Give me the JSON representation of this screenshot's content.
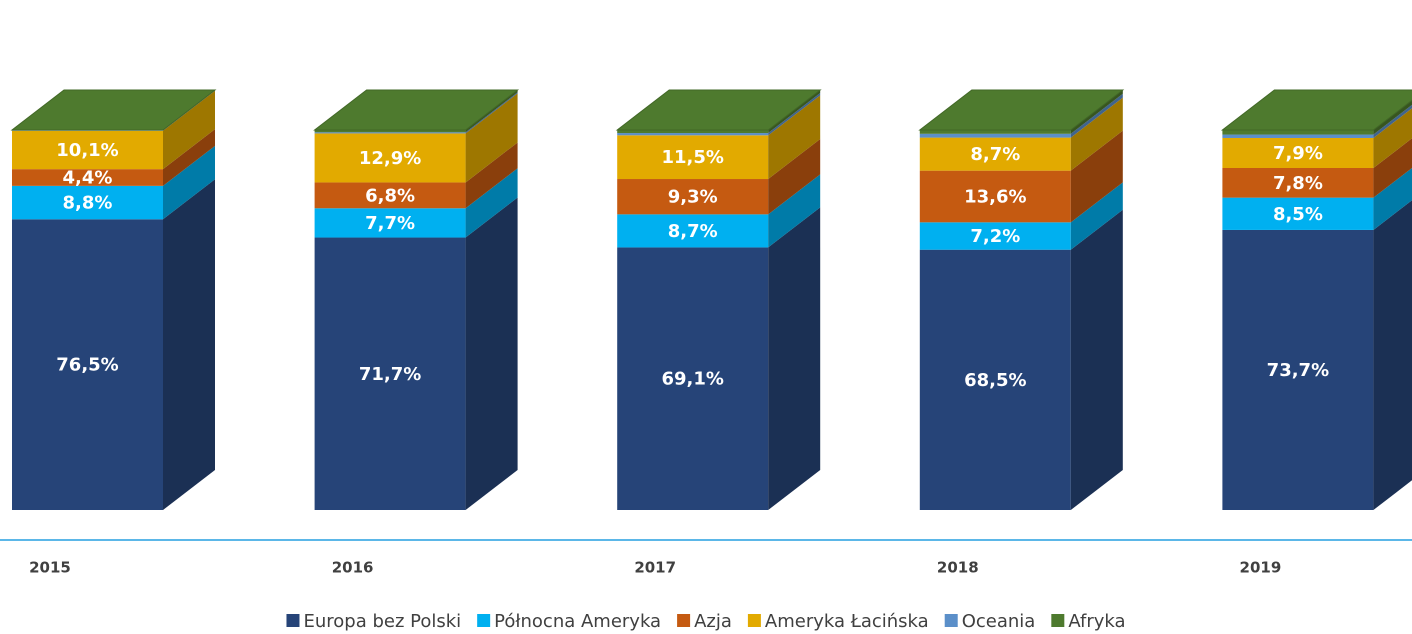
{
  "chart_data": {
    "type": "bar3d_stacked",
    "categories": [
      "2015",
      "2016",
      "2017",
      "2018",
      "2019"
    ],
    "series": [
      {
        "name": "Europa bez Polski",
        "color": "#264478",
        "values": [
          76.5,
          71.7,
          69.1,
          68.5,
          73.7
        ],
        "value_labels": [
          "76,5%",
          "71,7%",
          "69,1%",
          "68,5%",
          "73,7%"
        ]
      },
      {
        "name": "Północna Ameryka",
        "color": "#00b0f0",
        "values": [
          8.8,
          7.7,
          8.7,
          7.2,
          8.5
        ],
        "value_labels": [
          "8,8%",
          "7,7%",
          "8,7%",
          "7,2%",
          "8,5%"
        ]
      },
      {
        "name": "Azja",
        "color": "#c55a11",
        "values": [
          4.4,
          6.8,
          9.3,
          13.6,
          7.8
        ],
        "value_labels": [
          "4,4%",
          "6,8%",
          "9,3%",
          "13,6%",
          "7,8%"
        ]
      },
      {
        "name": "Ameryka Łacińska",
        "color": "#e2aa00",
        "values": [
          10.1,
          12.9,
          11.5,
          8.7,
          7.9
        ],
        "value_labels": [
          "10,1%",
          "12,9%",
          "11,5%",
          "8,7%",
          "7,9%"
        ]
      },
      {
        "name": "Oceania",
        "color": "#5b8fc9",
        "values": [
          0.1,
          0.3,
          0.6,
          1.0,
          0.9
        ]
      },
      {
        "name": "Afryka",
        "color": "#4e7a2e",
        "values": [
          0.1,
          0.6,
          0.8,
          1.0,
          1.2
        ]
      }
    ],
    "legend": "bottom"
  }
}
